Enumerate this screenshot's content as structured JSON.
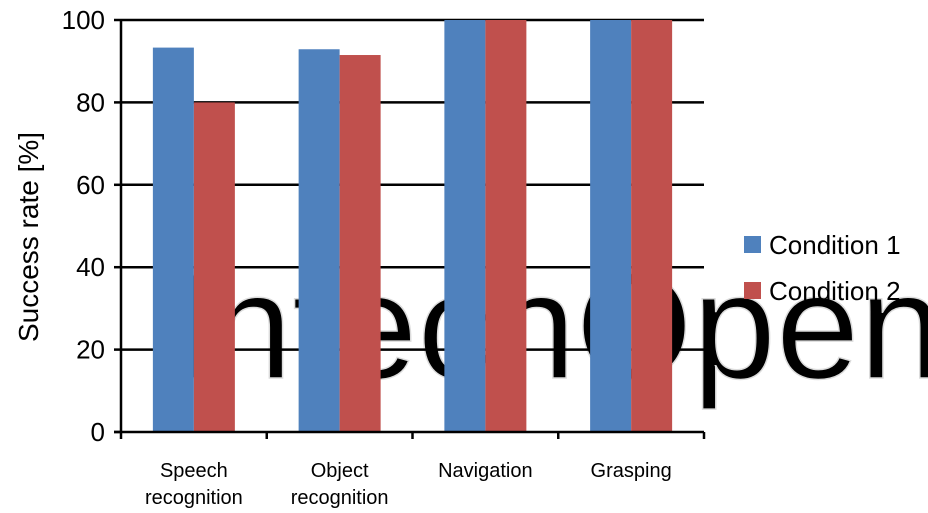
{
  "chart_data": {
    "type": "bar",
    "title": "",
    "xlabel": "",
    "ylabel": "Success rate [%]",
    "ylim": [
      0,
      100
    ],
    "yticks": [
      0,
      20,
      40,
      60,
      80,
      100
    ],
    "grid": "horizontal",
    "legend_position": "right",
    "categories": [
      [
        "Speech",
        "recognition"
      ],
      [
        "Object",
        "recognition"
      ],
      [
        "Navigation"
      ],
      [
        "Grasping"
      ]
    ],
    "series": [
      {
        "name": "Condition 1",
        "color": "#4f81bd",
        "values": [
          93.3,
          92.9,
          100,
          100
        ]
      },
      {
        "name": "Condition 2",
        "color": "#c0504d",
        "values": [
          80.0,
          91.5,
          100,
          100
        ]
      }
    ]
  },
  "watermark": {
    "text": "IntechOpen",
    "color": "#dcdcdc"
  }
}
